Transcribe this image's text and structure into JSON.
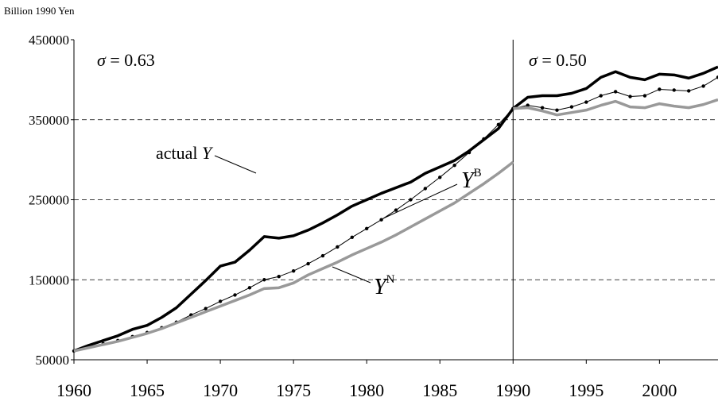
{
  "chart_data": {
    "type": "line",
    "y_axis_label": "Billion 1990 Yen",
    "x": [
      1960,
      1961,
      1962,
      1963,
      1964,
      1965,
      1966,
      1967,
      1968,
      1969,
      1970,
      1971,
      1972,
      1973,
      1974,
      1975,
      1976,
      1977,
      1978,
      1979,
      1980,
      1981,
      1982,
      1983,
      1984,
      1985,
      1986,
      1987,
      1988,
      1989,
      1990,
      1991,
      1992,
      1993,
      1994,
      1995,
      1996,
      1997,
      1998,
      1999,
      2000,
      2001,
      2002,
      2003,
      2004
    ],
    "series": [
      {
        "color": "#000000",
        "style": "thick",
        "values": [
          61000,
          68000,
          74000,
          80000,
          88000,
          93000,
          103000,
          115000,
          132000,
          149000,
          167000,
          172000,
          187000,
          204000,
          202000,
          205000,
          212000,
          221000,
          231000,
          242000,
          250000,
          258000,
          265000,
          272000,
          283000,
          291000,
          299000,
          311000,
          325000,
          339000,
          364000,
          378000,
          380000,
          380000,
          383000,
          389000,
          403000,
          410000,
          403000,
          400000,
          407000,
          406000,
          402000,
          408000,
          416000
        ]
      },
      {
        "color": "#000000",
        "style": "dotted",
        "values": [
          61000,
          66000,
          70000,
          74000,
          79000,
          84000,
          90000,
          97000,
          106000,
          114000,
          123000,
          131000,
          140000,
          150000,
          154000,
          161000,
          170000,
          180000,
          191000,
          203000,
          214000,
          225000,
          237000,
          250000,
          264000,
          278000,
          293000,
          309000,
          326000,
          344000,
          364000,
          368000,
          365000,
          362000,
          366000,
          372000,
          380000,
          385000,
          379000,
          380000,
          388000,
          387000,
          386000,
          392000,
          403000
        ]
      },
      {
        "color": "#999999",
        "style": "thick",
        "x": [
          1960,
          1961,
          1962,
          1963,
          1964,
          1965,
          1966,
          1967,
          1968,
          1969,
          1970,
          1971,
          1972,
          1973,
          1974,
          1975,
          1976,
          1977,
          1978,
          1979,
          1980,
          1981,
          1982,
          1983,
          1984,
          1985,
          1986,
          1987,
          1988,
          1989,
          1990,
          null,
          1990,
          1991,
          1992,
          1993,
          1994,
          1995,
          1996,
          1997,
          1998,
          1999,
          2000,
          2001,
          2002,
          2003,
          2004
        ],
        "values": [
          61000,
          65000,
          69000,
          73000,
          78000,
          83000,
          89000,
          96000,
          103000,
          110000,
          117000,
          124000,
          131000,
          139000,
          140000,
          146000,
          156000,
          164000,
          172000,
          181000,
          189000,
          197000,
          206000,
          216000,
          226000,
          236000,
          246000,
          258000,
          270000,
          283000,
          297000,
          null,
          364000,
          365000,
          361000,
          356000,
          359000,
          362000,
          368000,
          373000,
          366000,
          365000,
          370000,
          367000,
          365000,
          369000,
          375000
        ]
      }
    ],
    "xlim": [
      1960,
      2004
    ],
    "xticks": [
      1960,
      1965,
      1970,
      1975,
      1980,
      1985,
      1990,
      1995,
      2000
    ],
    "ylim": [
      50000,
      450000
    ],
    "yticks": [
      50000,
      150000,
      250000,
      350000,
      450000
    ],
    "grid": true,
    "break_x": 1990,
    "annotations": [
      {
        "sigma": "σ",
        "text": "= 0.63"
      },
      {
        "sigma": "σ",
        "text": "= 0.50"
      }
    ],
    "line_labels": [
      {
        "text": "actual",
        "var": "Y"
      },
      {
        "var": "Y",
        "sup": "B"
      },
      {
        "var": "Y",
        "sup": "N"
      }
    ]
  }
}
